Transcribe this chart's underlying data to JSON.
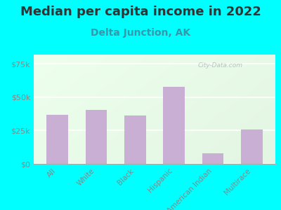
{
  "title": "Median per capita income in 2022",
  "subtitle": "Delta Junction, AK",
  "categories": [
    "All",
    "White",
    "Black",
    "Hispanic",
    "American Indian",
    "Multirace"
  ],
  "values": [
    37000,
    40500,
    36500,
    58000,
    8000,
    26000
  ],
  "bar_color": "#c9afd4",
  "background_outer": "#00FFFF",
  "yticks": [
    0,
    25000,
    50000,
    75000
  ],
  "ytick_labels": [
    "$0",
    "$25k",
    "$50k",
    "$75k"
  ],
  "ylim": [
    0,
    82000
  ],
  "title_fontsize": 13,
  "subtitle_fontsize": 10,
  "title_color": "#333333",
  "subtitle_color": "#3399aa",
  "tick_label_color": "#888888",
  "axis_label_color": "#888888",
  "watermark": "City-Data.com"
}
